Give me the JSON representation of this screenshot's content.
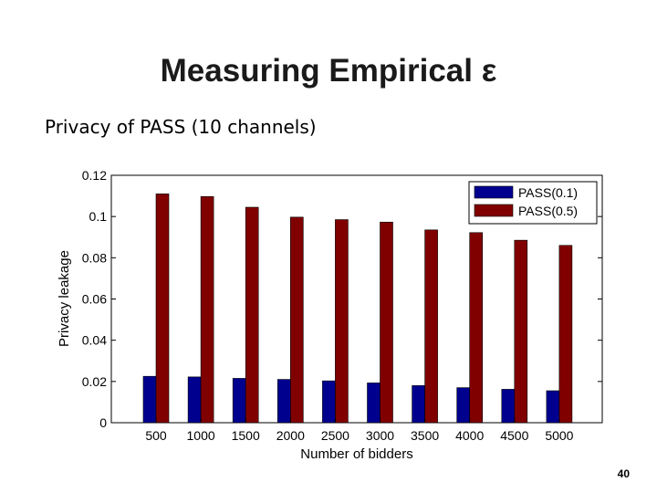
{
  "slide": {
    "title": "Measuring Empirical ε",
    "subtitle": "Privacy of PASS (10 channels)",
    "page_number": "40"
  },
  "chart_data": {
    "type": "bar",
    "title": "",
    "xlabel": "Number of bidders",
    "ylabel": "Privacy leakage",
    "categories": [
      "500",
      "1000",
      "1500",
      "2000",
      "2500",
      "3000",
      "3500",
      "4000",
      "4500",
      "5000"
    ],
    "series": [
      {
        "name": "PASS(0.1)",
        "color": "#00008f",
        "values": [
          0.0225,
          0.0222,
          0.0215,
          0.021,
          0.0203,
          0.0193,
          0.018,
          0.017,
          0.0162,
          0.0155
        ]
      },
      {
        "name": "PASS(0.5)",
        "color": "#800000",
        "values": [
          0.111,
          0.1097,
          0.1045,
          0.0997,
          0.0985,
          0.0973,
          0.0935,
          0.0922,
          0.0885,
          0.086
        ]
      }
    ],
    "ylim": [
      0,
      0.12
    ],
    "yticks": [
      "0",
      "0.02",
      "0.04",
      "0.06",
      "0.08",
      "0.1",
      "0.12"
    ],
    "legend_position": "top-right",
    "grid": false
  }
}
